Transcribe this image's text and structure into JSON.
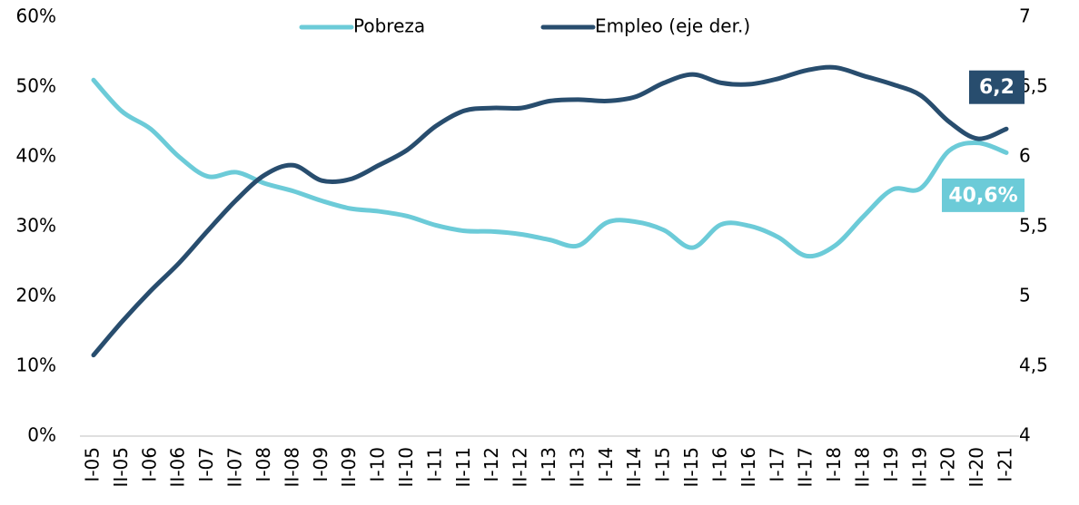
{
  "chart_data": {
    "type": "line",
    "categories": [
      "I-05",
      "II-05",
      "I-06",
      "II-06",
      "I-07",
      "II-07",
      "I-08",
      "II-08",
      "I-09",
      "II-09",
      "I-10",
      "II-10",
      "I-11",
      "II-11",
      "I-12",
      "II-12",
      "I-13",
      "II-13",
      "I-14",
      "II-14",
      "I-15",
      "II-15",
      "I-16",
      "II-16",
      "I-17",
      "II-17",
      "I-18",
      "II-18",
      "I-19",
      "II-19",
      "I-20",
      "II-20",
      "I-21"
    ],
    "series": [
      {
        "name": "Pobreza",
        "color": "#6ccbd8",
        "values": [
          51.0,
          46.5,
          44.0,
          40.0,
          37.2,
          37.8,
          36.2,
          35.1,
          33.7,
          32.6,
          32.2,
          31.5,
          30.2,
          29.4,
          29.3,
          28.9,
          28.1,
          27.3,
          30.6,
          30.7,
          29.5,
          27.0,
          30.3,
          30.1,
          28.5,
          25.8,
          27.3,
          31.5,
          35.3,
          35.5,
          40.9,
          42.0,
          40.6
        ],
        "value_labels": [
          null,
          null,
          null,
          null,
          null,
          null,
          null,
          null,
          null,
          null,
          null,
          null,
          null,
          null,
          null,
          null,
          null,
          null,
          null,
          null,
          null,
          null,
          null,
          null,
          null,
          null,
          null,
          null,
          null,
          null,
          null,
          null,
          "40,6%"
        ]
      },
      {
        "name": "Empleo (eje der.)",
        "color": "#284d6e",
        "axis": "y2",
        "values": [
          4.58,
          4.82,
          5.04,
          5.24,
          5.47,
          5.69,
          5.87,
          5.94,
          5.83,
          5.84,
          5.94,
          6.05,
          6.22,
          6.33,
          6.35,
          6.35,
          6.4,
          6.41,
          6.4,
          6.43,
          6.53,
          6.59,
          6.53,
          6.52,
          6.56,
          6.62,
          6.64,
          6.58,
          6.52,
          6.44,
          6.25,
          6.13,
          6.2
        ],
        "value_labels": [
          null,
          null,
          null,
          null,
          null,
          null,
          null,
          null,
          null,
          null,
          null,
          null,
          null,
          null,
          null,
          null,
          null,
          null,
          null,
          null,
          null,
          null,
          null,
          null,
          null,
          null,
          null,
          null,
          null,
          null,
          null,
          null,
          "6,2"
        ]
      }
    ],
    "ylim": [
      0,
      60
    ],
    "yticks": [
      {
        "value": 0,
        "label": "0%"
      },
      {
        "value": 10,
        "label": "10%"
      },
      {
        "value": 20,
        "label": "20%"
      },
      {
        "value": 30,
        "label": "30%"
      },
      {
        "value": 40,
        "label": "40%"
      },
      {
        "value": 50,
        "label": "50%"
      },
      {
        "value": 60,
        "label": "60%"
      }
    ],
    "y2lim": [
      4,
      7
    ],
    "y2ticks": [
      4,
      {
        "value": 4.5,
        "label": "4,5"
      },
      5,
      {
        "value": 5.5,
        "label": "5,5"
      },
      6,
      {
        "value": 6.5,
        "label": "6,5"
      },
      7
    ],
    "legend": "top"
  }
}
